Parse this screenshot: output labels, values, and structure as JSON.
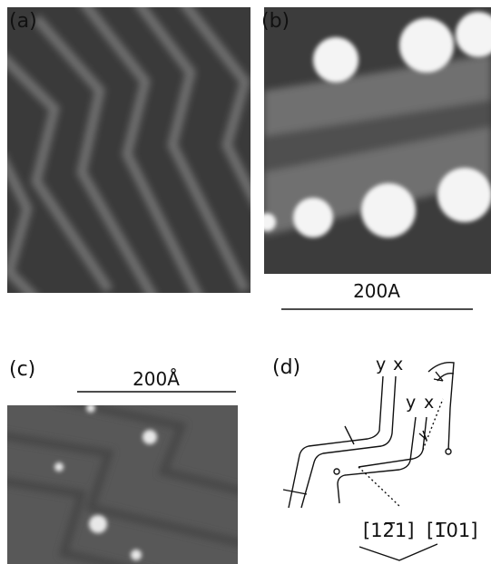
{
  "panels": [
    {
      "label": "(a)"
    },
    {
      "label": "(b)",
      "scale_bar": "200A"
    },
    {
      "label": "(c)",
      "scale_bar": "200Å"
    },
    {
      "label": "(d)",
      "axis_labels": [
        "y",
        "x",
        "y",
        "x"
      ],
      "directions": [
        "[12̅1]",
        "[1̅01]"
      ]
    }
  ]
}
